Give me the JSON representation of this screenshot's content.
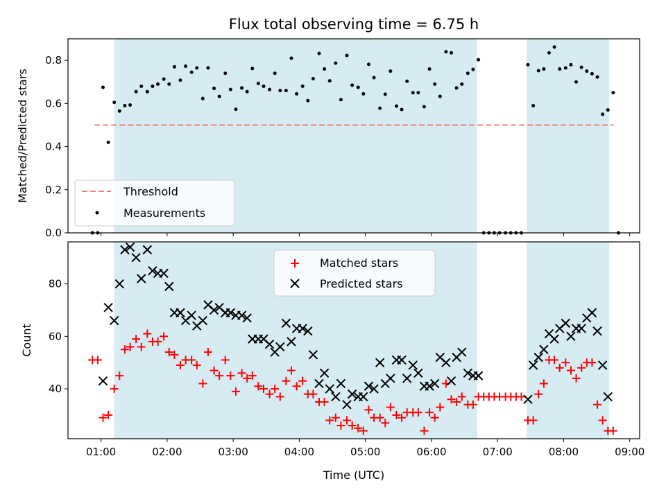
{
  "chart_data": {
    "type": "scatter",
    "title": "Flux total observing time = 6.75 h",
    "xlabel": "Time (UTC)",
    "x_ticks": [
      "01:00",
      "02:00",
      "03:00",
      "04:00",
      "05:00",
      "06:00",
      "07:00",
      "08:00",
      "09:00"
    ],
    "xlim_hours": [
      0.5,
      9.15
    ],
    "shaded_intervals_hours": [
      [
        1.2,
        6.69
      ],
      [
        7.44,
        8.69
      ]
    ],
    "shade_color": "#add8e6",
    "top_panel": {
      "ylabel": "Matched/Predicted stars",
      "ylim": [
        0,
        0.9
      ],
      "y_ticks": [
        "0.0",
        "0.2",
        "0.4",
        "0.6",
        "0.8"
      ],
      "threshold": {
        "name": "Threshold",
        "value": 0.5,
        "x_range_hours": [
          0.9,
          8.76
        ],
        "color": "#f08080"
      },
      "legend": [
        "Threshold",
        "Measurements"
      ],
      "measurements": {
        "name": "Measurements",
        "color": "#000000",
        "points": [
          [
            0.87,
            0.0
          ],
          [
            0.95,
            0.0
          ],
          [
            1.03,
            0.675
          ],
          [
            1.11,
            0.42
          ],
          [
            1.2,
            0.605
          ],
          [
            1.28,
            0.565
          ],
          [
            1.36,
            0.59
          ],
          [
            1.44,
            0.593
          ],
          [
            1.53,
            0.655
          ],
          [
            1.61,
            0.68
          ],
          [
            1.7,
            0.655
          ],
          [
            1.78,
            0.68
          ],
          [
            1.86,
            0.69
          ],
          [
            1.95,
            0.713
          ],
          [
            2.03,
            0.69
          ],
          [
            2.11,
            0.77
          ],
          [
            2.2,
            0.708
          ],
          [
            2.28,
            0.773
          ],
          [
            2.37,
            0.745
          ],
          [
            2.45,
            0.765
          ],
          [
            2.54,
            0.623
          ],
          [
            2.62,
            0.765
          ],
          [
            2.71,
            0.67
          ],
          [
            2.79,
            0.633
          ],
          [
            2.88,
            0.74
          ],
          [
            2.96,
            0.665
          ],
          [
            3.04,
            0.573
          ],
          [
            3.13,
            0.672
          ],
          [
            3.21,
            0.655
          ],
          [
            3.29,
            0.762
          ],
          [
            3.38,
            0.693
          ],
          [
            3.46,
            0.68
          ],
          [
            3.55,
            0.665
          ],
          [
            3.63,
            0.74
          ],
          [
            3.71,
            0.66
          ],
          [
            3.8,
            0.66
          ],
          [
            3.88,
            0.81
          ],
          [
            3.96,
            0.645
          ],
          [
            4.05,
            0.68
          ],
          [
            4.13,
            0.613
          ],
          [
            4.21,
            0.715
          ],
          [
            4.3,
            0.832
          ],
          [
            4.38,
            0.76
          ],
          [
            4.46,
            0.705
          ],
          [
            4.55,
            0.787
          ],
          [
            4.63,
            0.618
          ],
          [
            4.72,
            0.823
          ],
          [
            4.8,
            0.685
          ],
          [
            4.89,
            0.675
          ],
          [
            4.97,
            0.645
          ],
          [
            5.05,
            0.782
          ],
          [
            5.13,
            0.72
          ],
          [
            5.22,
            0.578
          ],
          [
            5.3,
            0.643
          ],
          [
            5.38,
            0.75
          ],
          [
            5.47,
            0.588
          ],
          [
            5.55,
            0.572
          ],
          [
            5.63,
            0.703
          ],
          [
            5.72,
            0.65
          ],
          [
            5.8,
            0.65
          ],
          [
            5.89,
            0.585
          ],
          [
            5.97,
            0.76
          ],
          [
            6.05,
            0.69
          ],
          [
            6.13,
            0.633
          ],
          [
            6.22,
            0.84
          ],
          [
            6.3,
            0.835
          ],
          [
            6.38,
            0.672
          ],
          [
            6.46,
            0.69
          ],
          [
            6.55,
            0.74
          ],
          [
            6.63,
            0.758
          ],
          [
            6.71,
            0.803
          ],
          [
            6.79,
            0.0
          ],
          [
            6.87,
            0.0
          ],
          [
            6.95,
            0.0
          ],
          [
            7.03,
            0.0
          ],
          [
            7.12,
            0.0
          ],
          [
            7.2,
            0.0
          ],
          [
            7.28,
            0.0
          ],
          [
            7.36,
            0.0
          ],
          [
            7.46,
            0.78
          ],
          [
            7.54,
            0.59
          ],
          [
            7.62,
            0.752
          ],
          [
            7.7,
            0.76
          ],
          [
            7.78,
            0.835
          ],
          [
            7.86,
            0.862
          ],
          [
            7.94,
            0.76
          ],
          [
            8.03,
            0.765
          ],
          [
            8.11,
            0.78
          ],
          [
            8.19,
            0.7
          ],
          [
            8.27,
            0.768
          ],
          [
            8.35,
            0.75
          ],
          [
            8.43,
            0.738
          ],
          [
            8.51,
            0.723
          ],
          [
            8.59,
            0.55
          ],
          [
            8.67,
            0.57
          ],
          [
            8.75,
            0.65
          ],
          [
            8.83,
            0.0
          ]
        ]
      }
    },
    "bottom_panel": {
      "ylabel": "Count",
      "ylim": [
        21,
        96
      ],
      "y_ticks": [
        "40",
        "60",
        "80"
      ],
      "legend": [
        "Matched stars",
        "Predicted stars"
      ],
      "matched_stars": {
        "name": "Matched stars",
        "color": "#ff0000",
        "points": [
          [
            0.87,
            51
          ],
          [
            0.95,
            51
          ],
          [
            1.03,
            29
          ],
          [
            1.11,
            30
          ],
          [
            1.2,
            40
          ],
          [
            1.28,
            45
          ],
          [
            1.36,
            55
          ],
          [
            1.44,
            56
          ],
          [
            1.53,
            59
          ],
          [
            1.61,
            56
          ],
          [
            1.7,
            61
          ],
          [
            1.78,
            58
          ],
          [
            1.86,
            58
          ],
          [
            1.95,
            60
          ],
          [
            2.03,
            54
          ],
          [
            2.11,
            53
          ],
          [
            2.2,
            49
          ],
          [
            2.28,
            51
          ],
          [
            2.37,
            51
          ],
          [
            2.45,
            49
          ],
          [
            2.54,
            42
          ],
          [
            2.62,
            54
          ],
          [
            2.71,
            47
          ],
          [
            2.79,
            45
          ],
          [
            2.88,
            51
          ],
          [
            2.96,
            45
          ],
          [
            3.04,
            39
          ],
          [
            3.13,
            46
          ],
          [
            3.21,
            44
          ],
          [
            3.29,
            45
          ],
          [
            3.38,
            41
          ],
          [
            3.46,
            40
          ],
          [
            3.55,
            38
          ],
          [
            3.63,
            40
          ],
          [
            3.71,
            37
          ],
          [
            3.8,
            43
          ],
          [
            3.88,
            47
          ],
          [
            3.96,
            41
          ],
          [
            4.05,
            43
          ],
          [
            4.13,
            38
          ],
          [
            4.21,
            38
          ],
          [
            4.3,
            35
          ],
          [
            4.38,
            35
          ],
          [
            4.46,
            28
          ],
          [
            4.55,
            29
          ],
          [
            4.63,
            26
          ],
          [
            4.72,
            28
          ],
          [
            4.8,
            26
          ],
          [
            4.89,
            25
          ],
          [
            4.97,
            24
          ],
          [
            5.05,
            32
          ],
          [
            5.13,
            29
          ],
          [
            5.22,
            29
          ],
          [
            5.3,
            27
          ],
          [
            5.38,
            33
          ],
          [
            5.47,
            30
          ],
          [
            5.55,
            29
          ],
          [
            5.63,
            31
          ],
          [
            5.72,
            31
          ],
          [
            5.8,
            31
          ],
          [
            5.89,
            24
          ],
          [
            5.97,
            31
          ],
          [
            6.05,
            29
          ],
          [
            6.13,
            33
          ],
          [
            6.22,
            42
          ],
          [
            6.3,
            36
          ],
          [
            6.38,
            35
          ],
          [
            6.46,
            37
          ],
          [
            6.55,
            34
          ],
          [
            6.63,
            34
          ],
          [
            6.71,
            37
          ],
          [
            6.79,
            37
          ],
          [
            6.87,
            37
          ],
          [
            6.95,
            37
          ],
          [
            7.03,
            37
          ],
          [
            7.12,
            37
          ],
          [
            7.2,
            37
          ],
          [
            7.28,
            37
          ],
          [
            7.36,
            37
          ],
          [
            7.46,
            28
          ],
          [
            7.54,
            28
          ],
          [
            7.62,
            38
          ],
          [
            7.7,
            42
          ],
          [
            7.78,
            51
          ],
          [
            7.86,
            51
          ],
          [
            7.94,
            48
          ],
          [
            8.03,
            50
          ],
          [
            8.11,
            47
          ],
          [
            8.19,
            44
          ],
          [
            8.27,
            48
          ],
          [
            8.35,
            50
          ],
          [
            8.43,
            50
          ],
          [
            8.51,
            34
          ],
          [
            8.59,
            28
          ],
          [
            8.67,
            24
          ],
          [
            8.75,
            24
          ]
        ]
      },
      "predicted_stars": {
        "name": "Predicted stars",
        "color": "#000000",
        "points": [
          [
            1.03,
            43
          ],
          [
            1.11,
            71
          ],
          [
            1.2,
            66
          ],
          [
            1.28,
            80
          ],
          [
            1.36,
            93
          ],
          [
            1.44,
            94
          ],
          [
            1.53,
            90
          ],
          [
            1.61,
            82
          ],
          [
            1.7,
            93
          ],
          [
            1.78,
            85
          ],
          [
            1.86,
            84
          ],
          [
            1.95,
            84
          ],
          [
            2.03,
            79
          ],
          [
            2.11,
            69
          ],
          [
            2.2,
            69
          ],
          [
            2.28,
            66
          ],
          [
            2.37,
            68
          ],
          [
            2.45,
            64
          ],
          [
            2.54,
            66
          ],
          [
            2.62,
            72
          ],
          [
            2.71,
            70
          ],
          [
            2.79,
            71
          ],
          [
            2.88,
            69
          ],
          [
            2.96,
            69
          ],
          [
            3.04,
            68
          ],
          [
            3.13,
            68
          ],
          [
            3.21,
            67
          ],
          [
            3.29,
            59
          ],
          [
            3.38,
            59
          ],
          [
            3.46,
            59
          ],
          [
            3.55,
            57
          ],
          [
            3.63,
            54
          ],
          [
            3.71,
            56
          ],
          [
            3.8,
            65
          ],
          [
            3.88,
            58
          ],
          [
            3.96,
            63
          ],
          [
            4.05,
            63
          ],
          [
            4.13,
            62
          ],
          [
            4.21,
            53
          ],
          [
            4.3,
            42
          ],
          [
            4.38,
            46
          ],
          [
            4.46,
            40
          ],
          [
            4.55,
            37
          ],
          [
            4.63,
            42
          ],
          [
            4.72,
            34
          ],
          [
            4.8,
            38
          ],
          [
            4.89,
            37
          ],
          [
            4.97,
            37
          ],
          [
            5.05,
            41
          ],
          [
            5.13,
            40
          ],
          [
            5.22,
            50
          ],
          [
            5.3,
            42
          ],
          [
            5.38,
            44
          ],
          [
            5.47,
            51
          ],
          [
            5.55,
            51
          ],
          [
            5.63,
            44
          ],
          [
            5.72,
            49
          ],
          [
            5.8,
            46
          ],
          [
            5.89,
            41
          ],
          [
            5.97,
            41
          ],
          [
            6.05,
            42
          ],
          [
            6.13,
            52
          ],
          [
            6.22,
            50
          ],
          [
            6.3,
            43
          ],
          [
            6.38,
            52
          ],
          [
            6.46,
            54
          ],
          [
            6.55,
            46
          ],
          [
            6.63,
            45
          ],
          [
            6.71,
            45
          ],
          [
            7.46,
            36
          ],
          [
            7.54,
            49
          ],
          [
            7.62,
            52
          ],
          [
            7.7,
            55
          ],
          [
            7.78,
            61
          ],
          [
            7.86,
            59
          ],
          [
            7.94,
            63
          ],
          [
            8.03,
            65
          ],
          [
            8.11,
            60
          ],
          [
            8.19,
            63
          ],
          [
            8.27,
            63
          ],
          [
            8.35,
            67
          ],
          [
            8.43,
            69
          ],
          [
            8.51,
            62
          ],
          [
            8.59,
            49
          ],
          [
            8.67,
            37
          ]
        ]
      }
    }
  }
}
